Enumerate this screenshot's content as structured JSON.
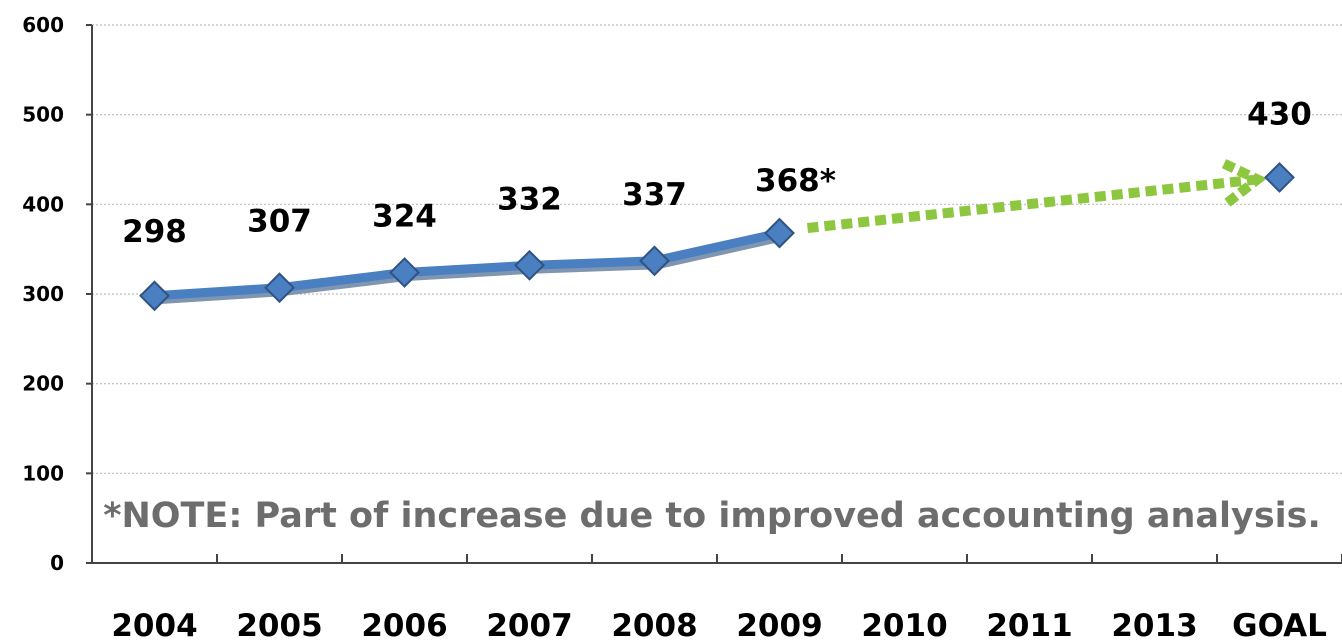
{
  "chart_data": {
    "type": "line",
    "categories": [
      "2004",
      "2005",
      "2006",
      "2007",
      "2008",
      "2009",
      "2010",
      "2011",
      "2013",
      "GOAL"
    ],
    "series": [
      {
        "values": [
          298,
          307,
          324,
          332,
          337,
          368,
          null,
          null,
          null,
          null
        ],
        "data_labels": [
          "298",
          "307",
          "324",
          "332",
          "337",
          "368*",
          "",
          "",
          "",
          ""
        ],
        "color": "#4a7fc1"
      },
      {
        "values": [
          null,
          null,
          null,
          null,
          null,
          368,
          null,
          null,
          null,
          430
        ],
        "data_labels": [
          "",
          "",
          "",
          "",
          "",
          "",
          "",
          "",
          "",
          "430"
        ],
        "color": "#8dc63f",
        "style": "dotted-arrow"
      }
    ],
    "ylim": [
      0,
      600
    ],
    "yticks": [
      "0",
      "100",
      "200",
      "300",
      "400",
      "500",
      "600"
    ],
    "grid": true,
    "annotation": "*NOTE: Part of increase due to improved accounting analysis."
  }
}
